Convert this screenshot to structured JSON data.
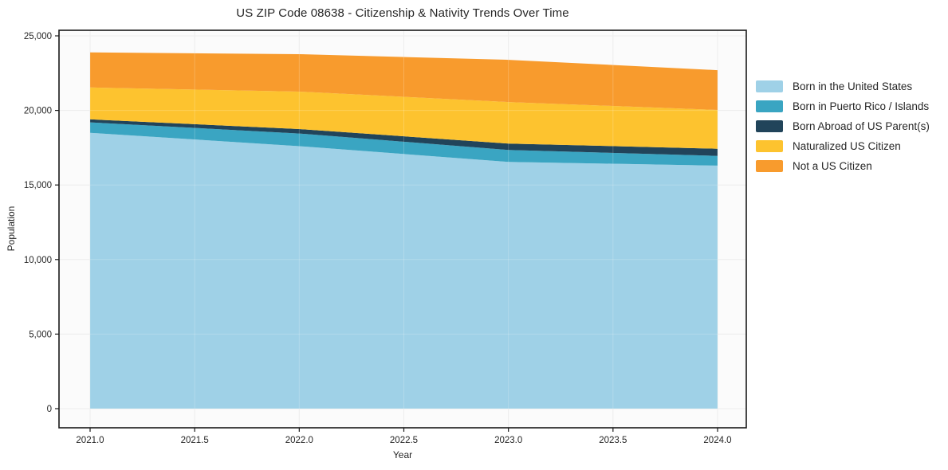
{
  "chart_data": {
    "type": "area",
    "stacked": true,
    "title": "US ZIP Code 08638 - Citizenship & Nativity Trends Over Time",
    "xlabel": "Year",
    "ylabel": "Population",
    "x": [
      2021,
      2022,
      2023,
      2024
    ],
    "series": [
      {
        "name": "Born in the United States",
        "color": "#9fd1e7",
        "values": [
          18500,
          17600,
          16550,
          16300
        ]
      },
      {
        "name": "Born in Puerto Rico / Islands",
        "color": "#3aa5c2",
        "values": [
          700,
          850,
          800,
          650
        ]
      },
      {
        "name": "Born Abroad of US Parent(s)",
        "color": "#21445a",
        "values": [
          200,
          300,
          430,
          480
        ]
      },
      {
        "name": "Naturalized US Citizen",
        "color": "#fdc32f",
        "values": [
          2140,
          2510,
          2780,
          2600
        ]
      },
      {
        "name": "Not a US Citizen",
        "color": "#f89b2d",
        "values": [
          2350,
          2510,
          2830,
          2670
        ]
      }
    ],
    "x_ticks": {
      "values": [
        2021.0,
        2021.5,
        2022.0,
        2022.5,
        2023.0,
        2023.5,
        2024.0
      ],
      "labels": [
        "2021.0",
        "2021.5",
        "2022.0",
        "2022.5",
        "2023.0",
        "2023.5",
        "2024.0"
      ]
    },
    "y_ticks": {
      "values": [
        0,
        5000,
        10000,
        15000,
        20000,
        25000
      ],
      "labels": [
        "0",
        "5,000",
        "10,000",
        "15,000",
        "20,000",
        "25,000"
      ]
    },
    "xlim": [
      2021,
      2024
    ],
    "ylim": [
      0,
      25000
    ],
    "grid": true,
    "legend_position": "right",
    "colors": {
      "spine": "#1a1a1a",
      "gridline": "#e9e9e9",
      "axes_background": "#fbfbfb",
      "text": "#262626"
    }
  }
}
